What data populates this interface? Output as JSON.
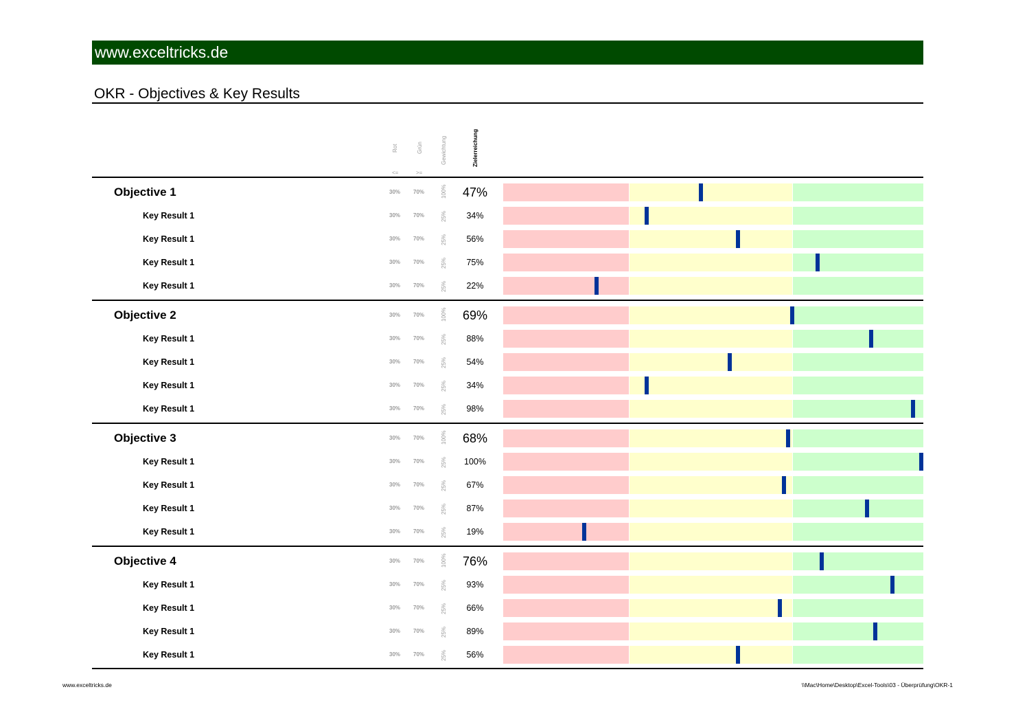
{
  "banner": "www.exceltricks.de",
  "title": "OKR - Objectives & Key Results",
  "columns": {
    "red": "Rot",
    "green": "Grün",
    "weight": "Gewichtung",
    "achievement": "Zielerreichung",
    "red_op": "<=",
    "green_op": ">="
  },
  "colors": {
    "banner": "#004a00",
    "zone_red": "#ffcccc",
    "zone_yellow": "#ffffcc",
    "zone_green": "#ccffcc",
    "marker": "#003399"
  },
  "objectives": [
    {
      "name": "Objective 1",
      "red": "30%",
      "green": "70%",
      "weight": "100%",
      "result": "47%",
      "value": 47,
      "key_results": [
        {
          "name": "Key Result 1",
          "red": "30%",
          "green": "70%",
          "weight": "25%",
          "result": "34%",
          "value": 34
        },
        {
          "name": "Key Result 1",
          "red": "30%",
          "green": "70%",
          "weight": "25%",
          "result": "56%",
          "value": 56
        },
        {
          "name": "Key Result 1",
          "red": "30%",
          "green": "70%",
          "weight": "25%",
          "result": "75%",
          "value": 75
        },
        {
          "name": "Key Result 1",
          "red": "30%",
          "green": "70%",
          "weight": "25%",
          "result": "22%",
          "value": 22
        }
      ]
    },
    {
      "name": "Objective 2",
      "red": "30%",
      "green": "70%",
      "weight": "100%",
      "result": "69%",
      "value": 69,
      "key_results": [
        {
          "name": "Key Result 1",
          "red": "30%",
          "green": "70%",
          "weight": "25%",
          "result": "88%",
          "value": 88
        },
        {
          "name": "Key Result 1",
          "red": "30%",
          "green": "70%",
          "weight": "25%",
          "result": "54%",
          "value": 54
        },
        {
          "name": "Key Result 1",
          "red": "30%",
          "green": "70%",
          "weight": "25%",
          "result": "34%",
          "value": 34
        },
        {
          "name": "Key Result 1",
          "red": "30%",
          "green": "70%",
          "weight": "25%",
          "result": "98%",
          "value": 98
        }
      ]
    },
    {
      "name": "Objective 3",
      "red": "30%",
      "green": "70%",
      "weight": "100%",
      "result": "68%",
      "value": 68,
      "key_results": [
        {
          "name": "Key Result 1",
          "red": "30%",
          "green": "70%",
          "weight": "25%",
          "result": "100%",
          "value": 100
        },
        {
          "name": "Key Result 1",
          "red": "30%",
          "green": "70%",
          "weight": "25%",
          "result": "67%",
          "value": 67
        },
        {
          "name": "Key Result 1",
          "red": "30%",
          "green": "70%",
          "weight": "25%",
          "result": "87%",
          "value": 87
        },
        {
          "name": "Key Result 1",
          "red": "30%",
          "green": "70%",
          "weight": "25%",
          "result": "19%",
          "value": 19
        }
      ]
    },
    {
      "name": "Objective 4",
      "red": "30%",
      "green": "70%",
      "weight": "100%",
      "result": "76%",
      "value": 76,
      "key_results": [
        {
          "name": "Key Result 1",
          "red": "30%",
          "green": "70%",
          "weight": "25%",
          "result": "93%",
          "value": 93
        },
        {
          "name": "Key Result 1",
          "red": "30%",
          "green": "70%",
          "weight": "25%",
          "result": "66%",
          "value": 66
        },
        {
          "name": "Key Result 1",
          "red": "30%",
          "green": "70%",
          "weight": "25%",
          "result": "89%",
          "value": 89
        },
        {
          "name": "Key Result 1",
          "red": "30%",
          "green": "70%",
          "weight": "25%",
          "result": "56%",
          "value": 56
        }
      ]
    }
  ],
  "footer": {
    "left": "www.exceltricks.de",
    "right": "\\\\Mac\\Home\\Desktop\\Excel-Tools\\03 - Überprüfung\\OKR-1"
  }
}
